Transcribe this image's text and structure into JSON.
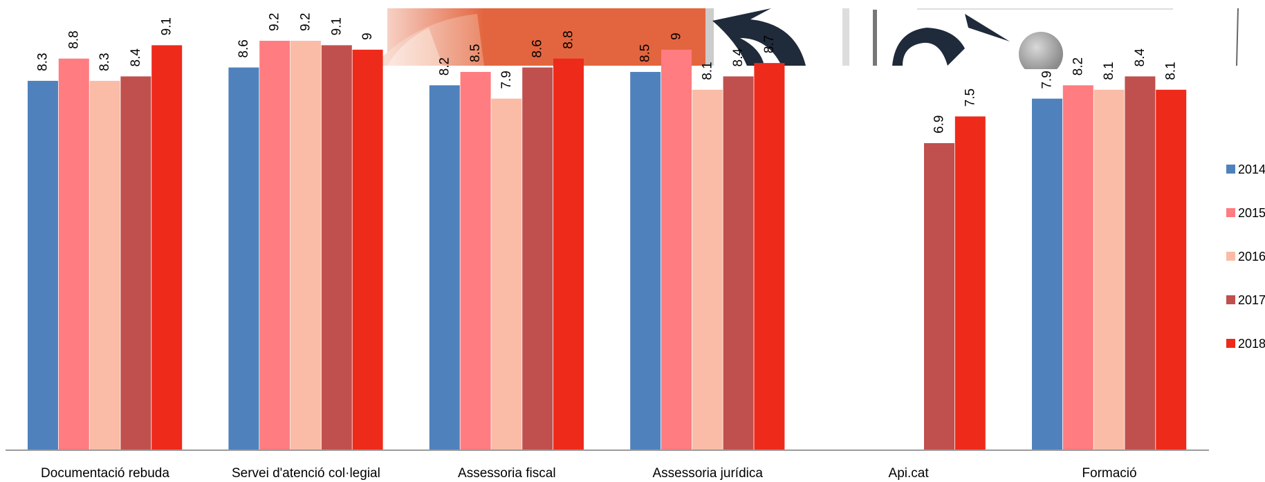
{
  "chart_data": {
    "type": "bar",
    "title": "",
    "xlabel": "",
    "ylabel": "",
    "ylim": [
      0,
      10
    ],
    "grid": false,
    "legend_position": "right",
    "categories": [
      "Documentació rebuda",
      "Servei d'atenció col·legial",
      "Assessoria fiscal",
      "Assessoria jurídica",
      "Api.cat",
      "Formació"
    ],
    "series": [
      {
        "name": "2014",
        "color": "#4f81bd",
        "values": [
          8.3,
          8.6,
          8.2,
          8.5,
          null,
          7.9
        ]
      },
      {
        "name": "2015",
        "color": "#ff7c80",
        "values": [
          8.8,
          9.2,
          8.5,
          9,
          null,
          8.2
        ]
      },
      {
        "name": "2016",
        "color": "#fabca6",
        "values": [
          8.3,
          9.2,
          7.9,
          8.1,
          null,
          8.1
        ]
      },
      {
        "name": "2017",
        "color": "#c0504d",
        "values": [
          8.4,
          9.1,
          8.6,
          8.4,
          6.9,
          8.4
        ]
      },
      {
        "name": "2018",
        "color": "#ee2a1a",
        "values": [
          9.1,
          9,
          8.8,
          8.7,
          7.5,
          8.1
        ]
      }
    ]
  },
  "banner": {
    "description_icon": "decorative-header-artwork"
  }
}
